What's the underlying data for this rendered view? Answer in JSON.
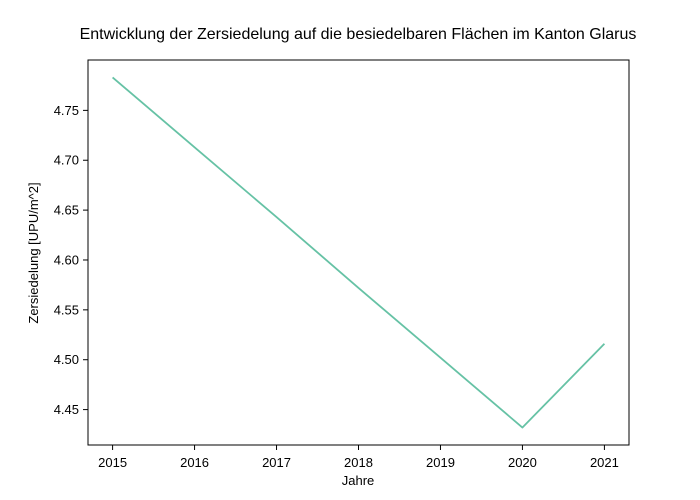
{
  "chart_data": {
    "type": "line",
    "title": "Entwicklung der Zersiedelung auf die besiedelbaren Flächen im Kanton Glarus",
    "xlabel": "Jahre",
    "ylabel": "Zersiedelung [UPU/m^2]",
    "x": [
      2015,
      2016,
      2017,
      2018,
      2019,
      2020,
      2021
    ],
    "series": [
      {
        "values": [
          4.783,
          4.713,
          4.643,
          4.572,
          4.502,
          4.432,
          4.516
        ],
        "color": "#66c2a5"
      }
    ],
    "xticks": [
      "2015",
      "2016",
      "2017",
      "2018",
      "2019",
      "2020",
      "2021"
    ],
    "yticks": [
      "4.45",
      "4.50",
      "4.55",
      "4.60",
      "4.65",
      "4.70",
      "4.75"
    ],
    "ytick_values": [
      4.45,
      4.5,
      4.55,
      4.6,
      4.65,
      4.7,
      4.75
    ],
    "xlim": [
      2014.7,
      2021.3
    ],
    "ylim": [
      4.4145,
      4.8005
    ],
    "grid": false,
    "legend": "none"
  }
}
